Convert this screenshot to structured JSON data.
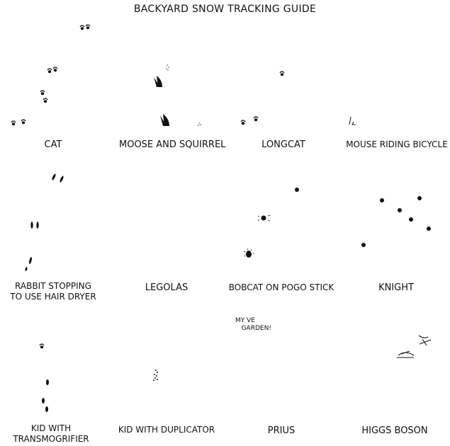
{
  "title": "BACKYARD SNOW TRACKING GUIDE",
  "panels": [
    {
      "label": "CAT"
    },
    {
      "label": "MOOSE AND SQUIRREL"
    },
    {
      "label": "LONGCAT"
    },
    {
      "label": "MOUSE RIDING BICYCLE"
    },
    {
      "label": "RABBIT STOPPING\nTO USE HAIR DRYER"
    },
    {
      "label": "LEGOLAS"
    },
    {
      "label": "BOBCAT ON POGO STICK"
    },
    {
      "label": "KNIGHT"
    },
    {
      "label": "KID WITH\nTRANSMOGRIFIER"
    },
    {
      "label": "KID WITH DUPLICATOR"
    },
    {
      "label": "PRIUS"
    },
    {
      "label": "HIGGS BOSON"
    }
  ],
  "prius_note": "MY VE\n   GARDEN!"
}
